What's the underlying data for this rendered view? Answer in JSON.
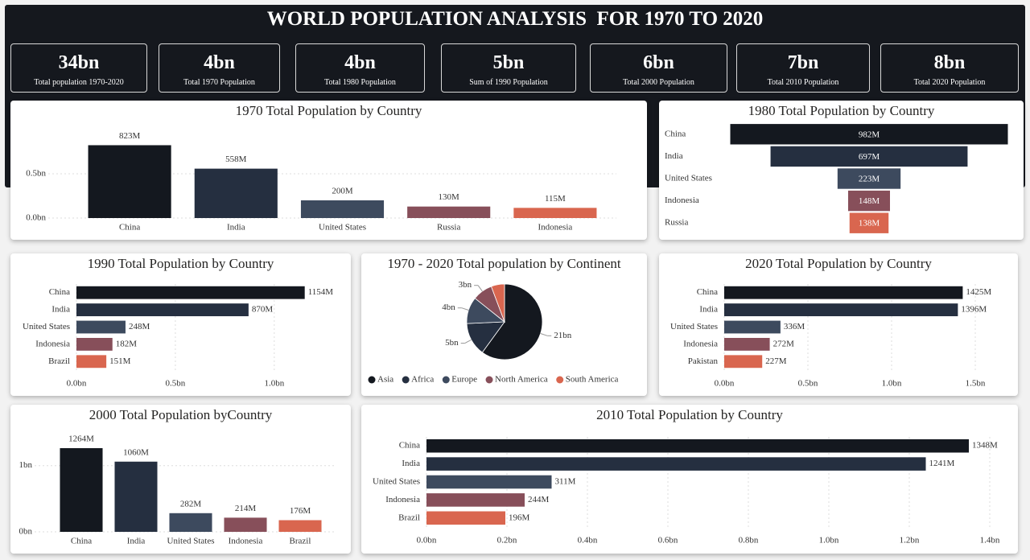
{
  "title": "WORLD POPULATION ANALYSIS  FOR 1970 TO 2020",
  "kpis": [
    {
      "value": "34bn",
      "label": "Total population 1970-2020"
    },
    {
      "value": "4bn",
      "label": "Total 1970 Population"
    },
    {
      "value": "4bn",
      "label": "Total 1980 Population"
    },
    {
      "value": "5bn",
      "label": "Sum of 1990 Population"
    },
    {
      "value": "6bn",
      "label": "Total 2000 Population"
    },
    {
      "value": "7bn",
      "label": "Total 2010 Population"
    },
    {
      "value": "8bn",
      "label": "Total 2020 Population"
    }
  ],
  "chart_data": [
    {
      "type": "column",
      "title": "1970 Total Population by Country",
      "categories": [
        "China",
        "India",
        "United States",
        "Russia",
        "Indonesia"
      ],
      "values": [
        823000000,
        558000000,
        200000000,
        130000000,
        115000000
      ],
      "value_labels": [
        "823M",
        "558M",
        "200M",
        "130M",
        "115M"
      ],
      "colors": [
        "#14181f",
        "#252f40",
        "#3d4a5e",
        "#874f5a",
        "#d9664f"
      ],
      "ylim": [
        0,
        900000000
      ],
      "yticks": [
        {
          "value": 0,
          "label": "0.0bn"
        },
        {
          "value": 500000000,
          "label": "0.5bn"
        }
      ],
      "grid": true
    },
    {
      "type": "funnel",
      "title": "1980 Total Population by Country",
      "categories": [
        "China",
        "India",
        "United States",
        "Indonesia",
        "Russia"
      ],
      "values": [
        982000000,
        697000000,
        223000000,
        148000000,
        138000000
      ],
      "value_labels": [
        "982M",
        "697M",
        "223M",
        "148M",
        "138M"
      ],
      "colors": [
        "#14181f",
        "#252f40",
        "#3d4a5e",
        "#874f5a",
        "#d9664f"
      ]
    },
    {
      "type": "bar",
      "title": "1990 Total Population by Country",
      "categories": [
        "China",
        "India",
        "United States",
        "Indonesia",
        "Brazil"
      ],
      "values": [
        1154000000,
        870000000,
        248000000,
        182000000,
        151000000
      ],
      "value_labels": [
        "1154M",
        "870M",
        "248M",
        "182M",
        "151M"
      ],
      "colors": [
        "#14181f",
        "#252f40",
        "#3d4a5e",
        "#874f5a",
        "#d9664f"
      ],
      "xlim": [
        0,
        1200000000
      ],
      "xticks": [
        {
          "value": 0,
          "label": "0.0bn"
        },
        {
          "value": 500000000,
          "label": "0.5bn"
        },
        {
          "value": 1000000000,
          "label": "1.0bn"
        }
      ],
      "grid": true
    },
    {
      "type": "pie",
      "title": "1970 - 2020 Total population by Continent",
      "categories": [
        "Asia",
        "Africa",
        "Europe",
        "North America",
        "South America"
      ],
      "values": [
        21,
        5,
        4,
        3,
        2
      ],
      "value_labels": [
        "21bn",
        "5bn",
        "4bn",
        "3bn",
        null
      ],
      "colors": [
        "#14181f",
        "#252f40",
        "#3d4a5e",
        "#874f5a",
        "#d9664f"
      ]
    },
    {
      "type": "bar",
      "title": "2020 Total Population by Country",
      "categories": [
        "China",
        "India",
        "United States",
        "Indonesia",
        "Pakistan"
      ],
      "values": [
        1425000000,
        1396000000,
        336000000,
        272000000,
        227000000
      ],
      "value_labels": [
        "1425M",
        "1396M",
        "336M",
        "272M",
        "227M"
      ],
      "colors": [
        "#14181f",
        "#252f40",
        "#3d4a5e",
        "#874f5a",
        "#d9664f"
      ],
      "xlim": [
        0,
        1500000000
      ],
      "xticks": [
        {
          "value": 0,
          "label": "0.0bn"
        },
        {
          "value": 500000000,
          "label": "0.5bn"
        },
        {
          "value": 1000000000,
          "label": "1.0bn"
        },
        {
          "value": 1500000000,
          "label": "1.5bn"
        }
      ],
      "grid": true
    },
    {
      "type": "column",
      "title": "2000 Total Population byCountry",
      "categories": [
        "China",
        "India",
        "United States",
        "Indonesia",
        "Brazil"
      ],
      "values": [
        1264000000,
        1060000000,
        282000000,
        214000000,
        176000000
      ],
      "value_labels": [
        "1264M",
        "1060M",
        "282M",
        "214M",
        "176M"
      ],
      "colors": [
        "#14181f",
        "#252f40",
        "#3d4a5e",
        "#874f5a",
        "#d9664f"
      ],
      "ylim": [
        0,
        1300000000
      ],
      "yticks": [
        {
          "value": 0,
          "label": "0bn"
        },
        {
          "value": 1000000000,
          "label": "1bn"
        }
      ],
      "grid": true
    },
    {
      "type": "bar",
      "title": "2010 Total Population by Country",
      "categories": [
        "China",
        "India",
        "United States",
        "Indonesia",
        "Brazil"
      ],
      "values": [
        1348000000,
        1241000000,
        311000000,
        244000000,
        196000000
      ],
      "value_labels": [
        "1348M",
        "1241M",
        "311M",
        "244M",
        "196M"
      ],
      "colors": [
        "#14181f",
        "#252f40",
        "#3d4a5e",
        "#874f5a",
        "#d9664f"
      ],
      "xlim": [
        0,
        1400000000
      ],
      "xticks": [
        {
          "value": 0,
          "label": "0.0bn"
        },
        {
          "value": 200000000,
          "label": "0.2bn"
        },
        {
          "value": 400000000,
          "label": "0.4bn"
        },
        {
          "value": 600000000,
          "label": "0.6bn"
        },
        {
          "value": 800000000,
          "label": "0.8bn"
        },
        {
          "value": 1000000000,
          "label": "1.0bn"
        },
        {
          "value": 1200000000,
          "label": "1.2bn"
        },
        {
          "value": 1400000000,
          "label": "1.4bn"
        }
      ],
      "grid": true
    }
  ]
}
